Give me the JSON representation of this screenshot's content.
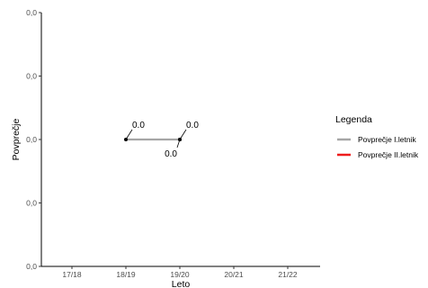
{
  "chart_data": {
    "type": "line",
    "xlabel": "Leto",
    "ylabel": "Povprečje",
    "categories": [
      "17/18",
      "18/19",
      "19/20",
      "20/21",
      "21/22"
    ],
    "y_tick_labels": [
      "0,0",
      "0,0",
      "0,0",
      "0,0",
      "0,0"
    ],
    "ylim": [
      -0.05,
      0.05
    ],
    "grid": false,
    "legend": {
      "title": "Legenda",
      "placement": "right",
      "entries": [
        "Povprečje I.letnik",
        "Povprečje II.letnik"
      ]
    },
    "series": [
      {
        "name": "Povprečje I.letnik",
        "color": "#a6a6a6",
        "points": [
          {
            "x": "18/19",
            "y": 0.0,
            "label": "0.0",
            "label_dir": "up"
          },
          {
            "x": "19/20",
            "y": 0.0,
            "label": "0.0",
            "label_dir": "down"
          }
        ]
      },
      {
        "name": "Povprečje II.letnik",
        "color": "#ee1c1c",
        "points": []
      },
      {
        "name": "",
        "color": "#a6a6a6",
        "points": [
          {
            "x": "19/20",
            "y": 0.0,
            "label": "0.0",
            "label_dir": "up"
          }
        ]
      }
    ]
  }
}
